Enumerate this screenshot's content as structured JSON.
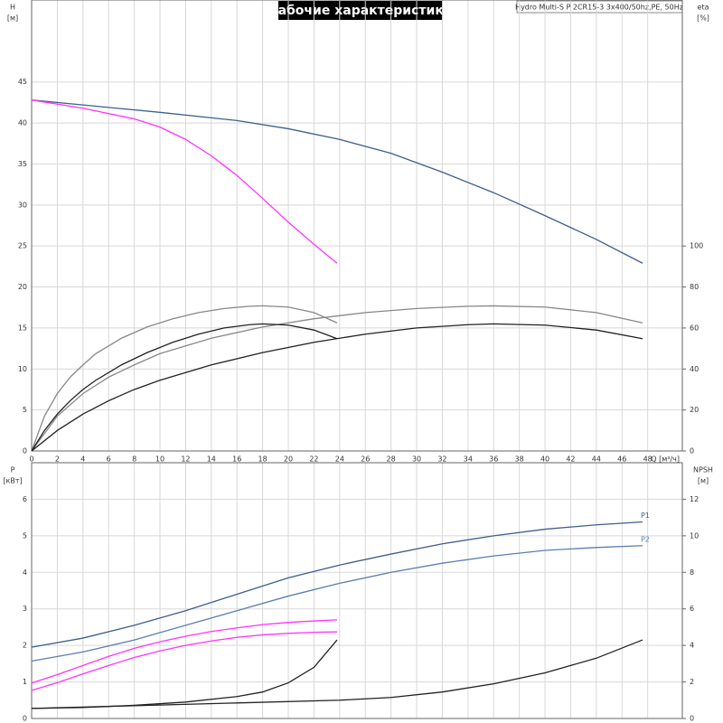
{
  "chart_data": [
    {
      "type": "line",
      "title": "Рабочие характеристики",
      "subtitle": "Hydro Multi-S P 2CR15-3 3x400/50hz,PE, 50Hz",
      "xlabel": "Q [м³/ч]",
      "ylabel": [
        "H",
        "[м]"
      ],
      "y2label": [
        "eta",
        "[%]"
      ],
      "xlim": [
        0,
        50.7
      ],
      "xticks": [
        0,
        2,
        4,
        6,
        8,
        10,
        12,
        14,
        16,
        18,
        20,
        22,
        24,
        26,
        28,
        30,
        32,
        34,
        36,
        38,
        40,
        42,
        44,
        46,
        48
      ],
      "ylim": [
        0,
        55
      ],
      "yticks": [
        0,
        5,
        10,
        15,
        20,
        25,
        30,
        35,
        40,
        45
      ],
      "y2lim": [
        0,
        220
      ],
      "y2ticks": [
        0,
        20,
        40,
        60,
        80,
        100
      ],
      "grid": true,
      "series": [
        {
          "color": "#3d5f8a",
          "x": [
            0,
            4,
            10,
            16,
            20,
            24,
            28,
            32,
            36,
            40,
            44,
            47.6
          ],
          "values": [
            42.8,
            42.2,
            41.3,
            40.3,
            39.3,
            38,
            36.3,
            34,
            31.5,
            28.7,
            25.8,
            22.9
          ]
        },
        {
          "color": "#ff33ff",
          "x": [
            0,
            4,
            8,
            10,
            12,
            14,
            16,
            18,
            20,
            22,
            23.8
          ],
          "values": [
            42.8,
            41.8,
            40.5,
            39.5,
            38,
            36,
            33.6,
            30.8,
            27.9,
            25.2,
            22.9
          ]
        },
        {
          "color": "#888888",
          "axis": "y2",
          "x": [
            0,
            2,
            4,
            6,
            8,
            10,
            14,
            18,
            22,
            26,
            30,
            34,
            36,
            40,
            44,
            47.6
          ],
          "values": [
            0,
            17,
            28,
            36,
            42,
            47.5,
            55,
            60.5,
            64.5,
            67.5,
            69.5,
            70.6,
            70.8,
            70.2,
            67.5,
            62.5
          ]
        },
        {
          "color": "#222222",
          "axis": "y2",
          "x": [
            0,
            2,
            4,
            6,
            8,
            10,
            14,
            18,
            22,
            26,
            30,
            34,
            36,
            40,
            44,
            47.6
          ],
          "values": [
            0,
            10,
            18,
            24.5,
            30,
            34.5,
            42,
            48,
            53,
            57,
            60,
            61.6,
            62,
            61.4,
            59,
            54.8
          ]
        },
        {
          "color": "#888888",
          "axis": "y2",
          "x": [
            0,
            1,
            2,
            3,
            4,
            5,
            7,
            9,
            11,
            13,
            15,
            17,
            18,
            20,
            22,
            23.8
          ],
          "values": [
            0,
            17,
            28,
            36,
            42,
            47.5,
            55,
            60.5,
            64.5,
            67.5,
            69.5,
            70.6,
            70.8,
            70.2,
            67.5,
            62.5
          ]
        },
        {
          "color": "#222222",
          "axis": "y2",
          "x": [
            0,
            1,
            2,
            3,
            4,
            5,
            7,
            9,
            11,
            13,
            15,
            17,
            18,
            20,
            22,
            23.8
          ],
          "values": [
            0,
            10,
            18,
            24.5,
            30,
            34.5,
            42,
            48,
            53,
            57,
            60,
            61.6,
            62,
            61.4,
            59,
            54.8
          ]
        }
      ]
    },
    {
      "type": "line",
      "ylabel": [
        "P",
        "[кВт]"
      ],
      "y2label": [
        "NPSH",
        "[м]"
      ],
      "xlim": [
        0,
        50.7
      ],
      "ylim": [
        0,
        7
      ],
      "yticks": [
        0,
        1,
        2,
        3,
        4,
        5,
        6
      ],
      "y2lim": [
        0,
        14
      ],
      "y2ticks": [
        0,
        2,
        4,
        6,
        8,
        10,
        12
      ],
      "grid": true,
      "series": [
        {
          "name": "P1",
          "color": "#3d5f8a",
          "x": [
            0,
            4,
            8,
            12,
            16,
            20,
            24,
            28,
            32,
            36,
            40,
            44,
            47.6
          ],
          "values": [
            1.95,
            2.2,
            2.55,
            2.95,
            3.4,
            3.85,
            4.2,
            4.5,
            4.78,
            5.0,
            5.18,
            5.3,
            5.38
          ]
        },
        {
          "name": "P2",
          "color": "#5a7fb0",
          "x": [
            0,
            4,
            8,
            12,
            16,
            20,
            24,
            28,
            32,
            36,
            40,
            44,
            47.6
          ],
          "values": [
            1.57,
            1.82,
            2.15,
            2.55,
            2.95,
            3.35,
            3.7,
            4.0,
            4.25,
            4.45,
            4.6,
            4.68,
            4.73
          ]
        },
        {
          "color": "#ff33ff",
          "x": [
            0,
            2,
            4,
            6,
            8,
            10,
            12,
            14,
            16,
            18,
            20,
            22,
            23.8
          ],
          "values": [
            0.97,
            1.2,
            1.45,
            1.7,
            1.92,
            2.1,
            2.25,
            2.38,
            2.48,
            2.57,
            2.63,
            2.67,
            2.7
          ]
        },
        {
          "color": "#ff33ff",
          "x": [
            0,
            2,
            4,
            6,
            8,
            10,
            12,
            14,
            16,
            18,
            20,
            22,
            23.8
          ],
          "values": [
            0.77,
            0.98,
            1.22,
            1.45,
            1.67,
            1.85,
            2.0,
            2.12,
            2.22,
            2.29,
            2.33,
            2.36,
            2.37
          ]
        },
        {
          "color": "#222222",
          "axis": "y2",
          "x": [
            0,
            8,
            16,
            24,
            28,
            32,
            36,
            40,
            44,
            47.6
          ],
          "values": [
            0.55,
            0.7,
            0.85,
            1.0,
            1.15,
            1.45,
            1.9,
            2.5,
            3.3,
            4.3
          ]
        },
        {
          "color": "#222222",
          "axis": "y2",
          "x": [
            0,
            4,
            8,
            12,
            16,
            18,
            20,
            22,
            23.8
          ],
          "values": [
            0.55,
            0.6,
            0.72,
            0.9,
            1.2,
            1.45,
            1.95,
            2.8,
            4.3
          ]
        }
      ]
    }
  ]
}
